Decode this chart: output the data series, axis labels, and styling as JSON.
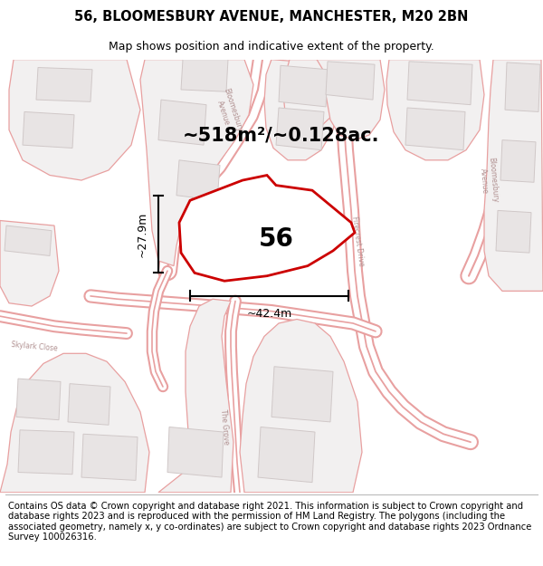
{
  "title": "56, BLOOMESBURY AVENUE, MANCHESTER, M20 2BN",
  "subtitle": "Map shows position and indicative extent of the property.",
  "area_text": "~518m²/~0.128ac.",
  "number_label": "56",
  "dim_h": "~27.9m",
  "dim_w": "~42.4m",
  "footer": "Contains OS data © Crown copyright and database right 2021. This information is subject to Crown copyright and database rights 2023 and is reproduced with the permission of HM Land Registry. The polygons (including the associated geometry, namely x, y co-ordinates) are subject to Crown copyright and database rights 2023 Ordnance Survey 100026316.",
  "bg_color": "#ffffff",
  "map_bg": "#ffffff",
  "road_color": "#e8a0a0",
  "road_fill": "#f5e8e8",
  "building_color": "#e8e4e4",
  "building_edge": "#d0c8c8",
  "highlight_color": "#cc0000",
  "highlight_fill": "none",
  "footer_bg": "#ffffff",
  "title_fontsize": 10.5,
  "subtitle_fontsize": 9,
  "area_fontsize": 15,
  "number_fontsize": 20,
  "dim_fontsize": 9,
  "footer_fontsize": 7.2,
  "road_lw": 1.2,
  "map_xlim": [
    0,
    600
  ],
  "map_ylim": [
    0,
    430
  ]
}
